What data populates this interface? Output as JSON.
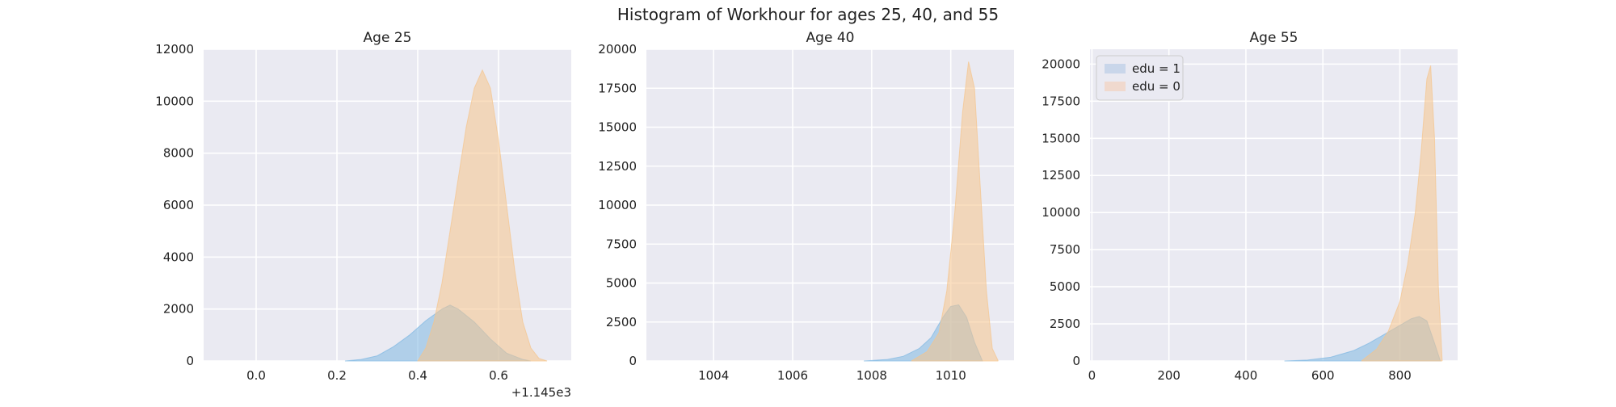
{
  "figure": {
    "suptitle": "Histogram of Workhour for ages 25, 40, and 55"
  },
  "chart_data": [
    {
      "type": "bar",
      "title": "Age 25",
      "xlabel": "",
      "ylabel": "",
      "x_offset_label": "+1.145e3",
      "xlim": [
        -0.13,
        0.78
      ],
      "ylim": [
        0,
        12000
      ],
      "x_ticks": [
        0.0,
        0.2,
        0.4,
        0.6
      ],
      "x_tick_labels": [
        "0.0",
        "0.2",
        "0.4",
        "0.6"
      ],
      "y_ticks": [
        0,
        2000,
        4000,
        6000,
        8000,
        10000,
        12000
      ],
      "grid": true,
      "series": [
        {
          "name": "edu = 1",
          "color": "#7fb8e2",
          "x": [
            0.22,
            0.26,
            0.3,
            0.34,
            0.38,
            0.42,
            0.46,
            0.48,
            0.5,
            0.54,
            0.58,
            0.62,
            0.66,
            0.68
          ],
          "values": [
            0,
            60,
            200,
            550,
            1000,
            1550,
            2000,
            2150,
            2000,
            1500,
            850,
            300,
            60,
            0
          ]
        },
        {
          "name": "edu = 0",
          "color": "#f5c48c",
          "x": [
            0.4,
            0.42,
            0.44,
            0.46,
            0.48,
            0.5,
            0.52,
            0.54,
            0.56,
            0.58,
            0.6,
            0.62,
            0.64,
            0.66,
            0.68,
            0.7,
            0.72
          ],
          "values": [
            0,
            500,
            1500,
            3000,
            5000,
            7000,
            9000,
            10500,
            11200,
            10500,
            8500,
            6000,
            3500,
            1500,
            500,
            100,
            0
          ]
        }
      ]
    },
    {
      "type": "bar",
      "title": "Age 40",
      "xlabel": "",
      "ylabel": "",
      "xlim": [
        1002.3,
        1011.6
      ],
      "ylim": [
        0,
        20000
      ],
      "x_ticks": [
        1004,
        1006,
        1008,
        1010
      ],
      "x_tick_labels": [
        "1004",
        "1006",
        "1008",
        "1010"
      ],
      "y_ticks": [
        0,
        2500,
        5000,
        7500,
        10000,
        12500,
        15000,
        17500,
        20000
      ],
      "grid": true,
      "series": [
        {
          "name": "edu = 1",
          "color": "#7fb8e2",
          "x": [
            1007.8,
            1008.4,
            1008.8,
            1009.2,
            1009.5,
            1009.8,
            1010.0,
            1010.2,
            1010.4,
            1010.6,
            1010.8
          ],
          "values": [
            0,
            100,
            300,
            800,
            1500,
            2800,
            3500,
            3600,
            2800,
            1200,
            0
          ]
        },
        {
          "name": "edu = 0",
          "color": "#f5c48c",
          "x": [
            1009.0,
            1009.4,
            1009.7,
            1009.9,
            1010.1,
            1010.3,
            1010.45,
            1010.6,
            1010.75,
            1010.9,
            1011.05,
            1011.2
          ],
          "values": [
            0,
            600,
            1800,
            4500,
            9500,
            16000,
            19200,
            17500,
            11000,
            4500,
            800,
            0
          ]
        }
      ]
    },
    {
      "type": "bar",
      "title": "Age 55",
      "xlabel": "",
      "ylabel": "",
      "xlim": [
        -5,
        950
      ],
      "ylim": [
        0,
        21000
      ],
      "x_ticks": [
        0,
        200,
        400,
        600,
        800
      ],
      "x_tick_labels": [
        "0",
        "200",
        "400",
        "600",
        "800"
      ],
      "y_ticks": [
        0,
        2500,
        5000,
        7500,
        10000,
        12500,
        15000,
        17500,
        20000
      ],
      "grid": true,
      "legend": "top-left",
      "series": [
        {
          "name": "edu = 1",
          "color": "#7fb8e2",
          "x": [
            500,
            560,
            620,
            680,
            720,
            760,
            800,
            830,
            850,
            870,
            890,
            905
          ],
          "values": [
            0,
            60,
            250,
            700,
            1200,
            1800,
            2400,
            2850,
            3000,
            2700,
            1200,
            0
          ]
        },
        {
          "name": "edu = 0",
          "color": "#f5c48c",
          "x": [
            700,
            740,
            770,
            800,
            820,
            840,
            855,
            870,
            880,
            890,
            900,
            910
          ],
          "values": [
            0,
            800,
            2000,
            4000,
            6500,
            10000,
            14000,
            19000,
            19900,
            15000,
            5000,
            0
          ]
        }
      ]
    }
  ],
  "legend": {
    "items": [
      {
        "label": "edu = 1",
        "swatch": "#c9d6ea"
      },
      {
        "label": "edu = 0",
        "swatch": "#f0d9ce"
      }
    ]
  }
}
